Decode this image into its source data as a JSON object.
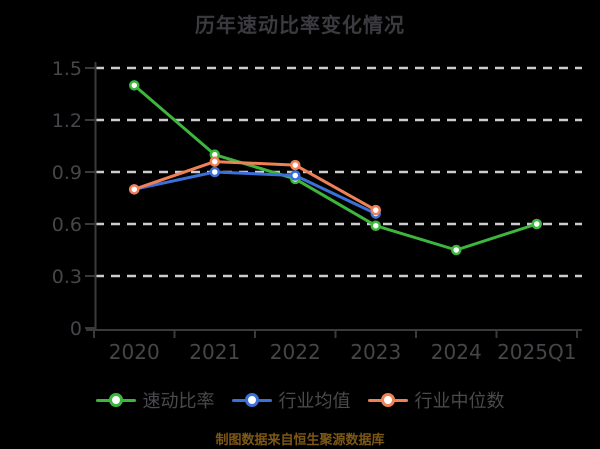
{
  "title": "历年速动比率变化情况",
  "footer": "制图数据来自恒生聚源数据库",
  "colors": {
    "background": "#000000",
    "title_text": "#3b3b3f",
    "axis_line": "#3a3a3a",
    "axis_label": "#46464a",
    "gridline": "#cccccc",
    "legend_text": "#4a4a4e",
    "footer_text": "#7d5814",
    "marker_fill": "#ffffff"
  },
  "chart_data": {
    "type": "line",
    "title": "历年速动比率变化情况",
    "categories": [
      "2020",
      "2021",
      "2022",
      "2023",
      "2024",
      "2025Q1"
    ],
    "series": [
      {
        "name": "速动比率",
        "color": "#3eb63e",
        "values": [
          1.4,
          1.0,
          0.86,
          0.59,
          0.45,
          0.6
        ]
      },
      {
        "name": "行业均值",
        "color": "#3a70d8",
        "values": [
          0.8,
          0.9,
          0.88,
          0.66,
          null,
          null
        ]
      },
      {
        "name": "行业中位数",
        "color": "#f08156",
        "values": [
          0.8,
          0.96,
          0.94,
          0.68,
          null,
          null
        ]
      }
    ],
    "xlabel": "",
    "ylabel": "",
    "ylim": [
      0,
      1.5
    ],
    "yticks": [
      0,
      0.3,
      0.6,
      0.9,
      1.2,
      1.5
    ],
    "grid": "horizontal-dashed",
    "legend_position": "bottom"
  }
}
